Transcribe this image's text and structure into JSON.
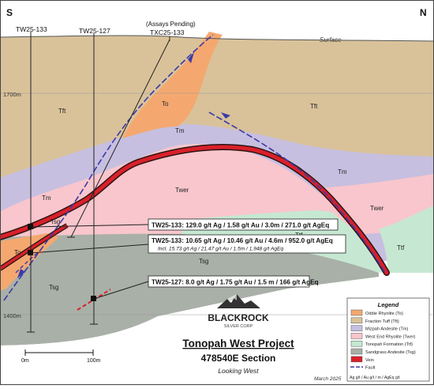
{
  "compass": {
    "left": "S",
    "right": "N"
  },
  "surface_label": "Surface",
  "elevations": [
    "1700m",
    "1400m"
  ],
  "drillholes": [
    {
      "name": "TW25-133"
    },
    {
      "name": "TW25-127"
    },
    {
      "status": "(Assays Pending)",
      "name": "TXC25-133"
    }
  ],
  "unit_labels": {
    "to": "To",
    "tft": "Tft",
    "tm": "Tm",
    "twer": "Twer",
    "ttf": "Ttf",
    "tsg": "Tsg"
  },
  "intercepts": [
    {
      "text": "TW25-133: 129.0 g/t Ag / 1.58 g/t Au / 3.0m / 271.0 g/t AgEq",
      "incl": ""
    },
    {
      "text": "TW25-133: 10.65 g/t Ag / 10.46 g/t Au / 4.6m / 952.0 g/t AgEq",
      "incl": "Incl. 15.73 g/t Ag / 21.47 g/t Au / 1.5m / 1,948 g/t AgEq"
    },
    {
      "text": "TW25-127: 8.0 g/t Ag / 1.75 g/t Au / 1.5 m / 166 g/t AgEq",
      "incl": ""
    }
  ],
  "logo": {
    "name": "BLACKROCK",
    "sub": "SILVER CORP"
  },
  "title": {
    "project": "Tonopah West Project",
    "section": "478540E Section",
    "view": "Looking West",
    "date": "March 2025"
  },
  "scale_bar": {
    "start": "0m",
    "end": "100m"
  },
  "legend": {
    "title": "Legend",
    "items": [
      {
        "label": "Oddie Rhyolite (To)",
        "color": "#f4a870",
        "kind": "box"
      },
      {
        "label": "Fraction Tuff (Tft)",
        "color": "#d9c29a",
        "kind": "box"
      },
      {
        "label": "Mizpah Andesite (Tm)",
        "color": "#c7bfe0",
        "kind": "box"
      },
      {
        "label": "West End Rhyolite (Twer)",
        "color": "#f8c6cc",
        "kind": "box"
      },
      {
        "label": "Tonopah Formation (Ttf)",
        "color": "#c6e8d2",
        "kind": "box"
      },
      {
        "label": "Sandgrass Andesite (Tsg)",
        "color": "#a9b0a8",
        "kind": "box"
      },
      {
        "label": "Vein",
        "color": "#d9202a",
        "kind": "box"
      },
      {
        "label": "Fault",
        "color": "#3a3aa8",
        "kind": "fault"
      }
    ],
    "footnote": "Ag g/t / Au g/t / m / AgEq g/t"
  }
}
